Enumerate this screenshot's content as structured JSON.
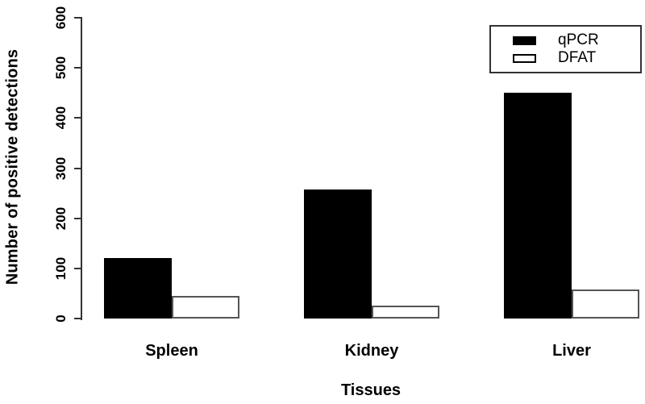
{
  "chart_data": {
    "type": "bar",
    "title": "",
    "xlabel": "Tissues",
    "ylabel": "Number of positive detections",
    "categories": [
      "Spleen",
      "Kidney",
      "Liver"
    ],
    "series": [
      {
        "name": "qPCR",
        "fill": "#000000",
        "outline": "#000000",
        "values": [
          120,
          257,
          450
        ]
      },
      {
        "name": "DFAT",
        "fill": "#ffffff",
        "outline": "#555555",
        "values": [
          45,
          25,
          58
        ]
      }
    ],
    "ylim": [
      0,
      600
    ],
    "yticks": [
      0,
      100,
      200,
      300,
      400,
      500,
      600
    ],
    "grid": false,
    "legend_position": "top-right",
    "background": "#ffffff",
    "bar_layout": "grouped"
  }
}
